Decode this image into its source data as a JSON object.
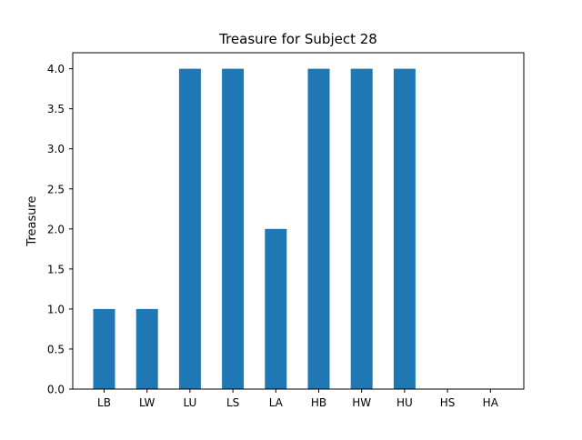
{
  "chart_data": {
    "type": "bar",
    "title": "Treasure for Subject 28",
    "xlabel": "",
    "ylabel": "Treasure",
    "categories": [
      "LB",
      "LW",
      "LU",
      "LS",
      "LA",
      "HB",
      "HW",
      "HU",
      "HS",
      "HA"
    ],
    "values": [
      1,
      1,
      4,
      4,
      2,
      4,
      4,
      4,
      0,
      0
    ],
    "ylim": [
      0,
      4.2
    ],
    "yticks": [
      "0.0",
      "0.5",
      "1.0",
      "1.5",
      "2.0",
      "2.5",
      "3.0",
      "3.5",
      "4.0"
    ],
    "grid": false,
    "bar_color": "#1f77b4"
  }
}
